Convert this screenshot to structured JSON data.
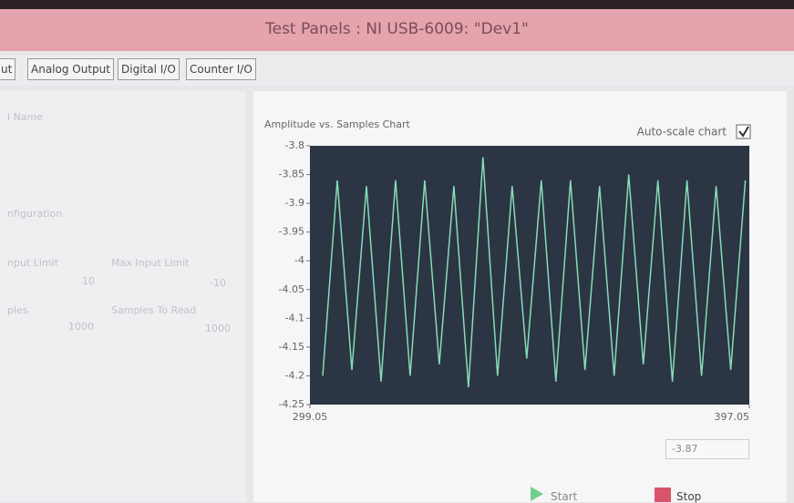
{
  "window": {
    "title": "Test Panels : NI USB-6009: \"Dev1\""
  },
  "tabs": [
    "ut",
    "Analog Output",
    "Digital I/O",
    "Counter I/O"
  ],
  "left_panel": {
    "labels": [
      "l Name",
      "nfiguration",
      "nput Limit",
      "Max Input Limit",
      "ples",
      "Samples To Read"
    ],
    "fields": [
      "10",
      "-10",
      "1000",
      "1000"
    ]
  },
  "chart_data": {
    "type": "line",
    "title": "Amplitude vs. Samples Chart",
    "x": [
      301.9,
      305.15,
      308.4,
      311.65,
      314.9,
      318.15,
      321.4,
      324.65,
      327.9,
      331.15,
      334.4,
      337.65,
      340.9,
      344.15,
      347.4,
      350.65,
      353.9,
      357.15,
      360.4,
      363.65,
      366.9,
      370.15,
      373.4,
      376.65,
      379.9,
      383.15,
      386.4,
      389.65,
      392.9,
      396.15
    ],
    "values": [
      -4.2,
      -3.86,
      -4.19,
      -3.87,
      -4.21,
      -3.86,
      -4.2,
      -3.86,
      -4.18,
      -3.87,
      -4.22,
      -3.82,
      -4.2,
      -3.87,
      -4.17,
      -3.86,
      -4.21,
      -3.86,
      -4.19,
      -3.87,
      -4.2,
      -3.85,
      -4.18,
      -3.86,
      -4.21,
      -3.86,
      -4.2,
      -3.87,
      -4.19,
      -3.86
    ],
    "color": "#86dcb8",
    "xlim": [
      299.05,
      397.05
    ],
    "xticks": [
      299.05,
      397.05
    ],
    "ylim": [
      -4.25,
      -3.8
    ],
    "yticks": [
      -3.8,
      -3.85,
      -3.9,
      -3.95,
      -4,
      -4.05,
      -4.1,
      -4.15,
      -4.2,
      -4.25
    ]
  },
  "auto_scale": {
    "label": "Auto-scale chart",
    "checked": true
  },
  "readout": "-3.87",
  "buttons": [
    "Start",
    "Stop"
  ]
}
